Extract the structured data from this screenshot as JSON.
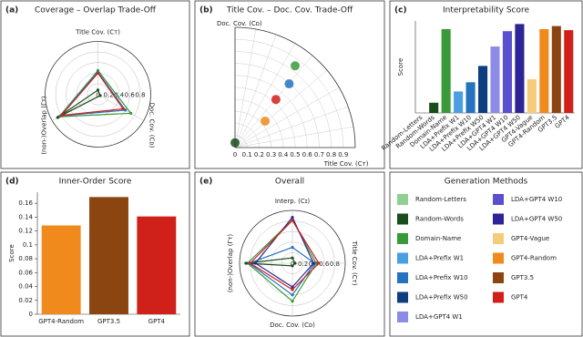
{
  "chart_data": [
    {
      "type": "radar",
      "panel_label": "(a)",
      "title": "Coverage – Overlap Trade-Off",
      "axes": [
        "Title Cov. (Cᴛ)",
        "Doc. Cov. (Cᴅ)",
        "(non-)Overlap (Γᴛ)"
      ],
      "rlim": [
        0,
        1
      ],
      "rticks": [
        0,
        0.2,
        0.4,
        0.6,
        0.8
      ],
      "series": [
        {
          "name": "Domain-Name",
          "color": "#3a9a3a",
          "values": [
            0.45,
            0.72,
            0.85
          ]
        },
        {
          "name": "Random-Words",
          "color": "#1b4d1b",
          "values": [
            0.08,
            0.05,
            0.88
          ]
        },
        {
          "name": "LDA+Prefix W10",
          "color": "#2472c0",
          "values": [
            0.42,
            0.6,
            0.82
          ]
        },
        {
          "name": "GPT4",
          "color": "#d0201a",
          "values": [
            0.4,
            0.55,
            0.8
          ]
        }
      ]
    },
    {
      "type": "polar-scatter",
      "panel_label": "(b)",
      "title": "Title Cov. – Doc. Cov. Trade-Off",
      "x_label": "Title Cov. (Cᴛ)",
      "y_label": "Doc. Cov. (Cᴅ)",
      "xlim": [
        0,
        1
      ],
      "ylim": [
        0,
        1
      ],
      "xticks": [
        0,
        0.1,
        0.2,
        0.3,
        0.4,
        0.5,
        0.6,
        0.7,
        0.8,
        0.9
      ],
      "series": [
        {
          "name": "Random-Words",
          "color": "#1b4d1b",
          "x": [
            0.0
          ],
          "values": [
            0.04
          ]
        },
        {
          "name": "GPT4-Random",
          "color": "#f08a1c",
          "x": [
            0.25
          ],
          "values": [
            0.22
          ]
        },
        {
          "name": "GPT4",
          "color": "#d0201a",
          "x": [
            0.34
          ],
          "values": [
            0.4
          ]
        },
        {
          "name": "LDA+Prefix W10",
          "color": "#2472c0",
          "x": [
            0.45
          ],
          "values": [
            0.53
          ]
        },
        {
          "name": "Domain-Name",
          "color": "#3a9a3a",
          "x": [
            0.5
          ],
          "values": [
            0.68
          ]
        }
      ]
    },
    {
      "type": "bar",
      "panel_label": "(c)",
      "title": "Interpretability Score",
      "y_label": "Score",
      "categories": [
        "Random-Letters",
        "Random-Words",
        "Domain-Name",
        "LDA+Prefix W1",
        "LDA+Prefix W10",
        "LDA+Prefix W50",
        "LDA+GPT4 W1",
        "LDA+GPT4 W10",
        "LDA+GPT4 W50",
        "GPT4-Vague",
        "GPT4-Random",
        "GPT3.5",
        "GPT4"
      ],
      "values": [
        0,
        0.1,
        0.82,
        0.21,
        0.3,
        0.46,
        0.65,
        0.8,
        0.87,
        0.33,
        0.82,
        0.85,
        0.81
      ],
      "colors": [
        "#8fcf8f",
        "#1b4d1b",
        "#3a9a3a",
        "#4a9fe0",
        "#2472c0",
        "#0d3f80",
        "#8c8ce8",
        "#5a4fcf",
        "#2d2596",
        "#f5cc7a",
        "#f08a1c",
        "#8b4510",
        "#d0201a"
      ],
      "ylim": [
        0,
        0.9
      ]
    },
    {
      "type": "bar",
      "panel_label": "(d)",
      "title": "Inner-Order Score",
      "y_label": "Score",
      "categories": [
        "GPT4-Random",
        "GPT3.5",
        "GPT4"
      ],
      "values": [
        0.128,
        0.169,
        0.141
      ],
      "colors": [
        "#f08a1c",
        "#8b4510",
        "#d0201a"
      ],
      "ylim": [
        0,
        0.176
      ],
      "yticks": [
        0,
        0.02,
        0.04,
        0.06,
        0.08,
        0.1,
        0.12,
        0.14,
        0.16
      ]
    },
    {
      "type": "radar",
      "panel_label": "(e)",
      "title": "Overall",
      "axes": [
        "Interp. (Cɪ)",
        "Title Cov. (Cᴛ)",
        "Doc. Cov. (Cᴅ)",
        "(non-)Overlap (Γᴛ)"
      ],
      "rlim": [
        0,
        1
      ],
      "rticks": [
        0,
        0.2,
        0.4,
        0.6,
        0.8
      ],
      "series": [
        {
          "name": "Domain-Name",
          "color": "#3a9a3a",
          "values": [
            0.82,
            0.45,
            0.72,
            0.85
          ]
        },
        {
          "name": "Random-Words",
          "color": "#1b4d1b",
          "values": [
            0.1,
            0.05,
            0.05,
            0.88
          ]
        },
        {
          "name": "LDA+Prefix W10",
          "color": "#2472c0",
          "values": [
            0.3,
            0.42,
            0.6,
            0.82
          ]
        },
        {
          "name": "LDA+GPT4 W50",
          "color": "#2d2596",
          "values": [
            0.87,
            0.4,
            0.45,
            0.7
          ]
        },
        {
          "name": "GPT4",
          "color": "#d0201a",
          "values": [
            0.81,
            0.5,
            0.5,
            0.8
          ]
        }
      ]
    },
    {
      "type": "legend",
      "title": "Generation Methods",
      "series": [
        {
          "name": "Random-Letters",
          "color": "#8fcf8f"
        },
        {
          "name": "Random-Words",
          "color": "#1b4d1b"
        },
        {
          "name": "Domain-Name",
          "color": "#3a9a3a"
        },
        {
          "name": "LDA+Prefix W1",
          "color": "#4a9fe0"
        },
        {
          "name": "LDA+Prefix W10",
          "color": "#2472c0"
        },
        {
          "name": "LDA+Prefix W50",
          "color": "#0d3f80"
        },
        {
          "name": "LDA+GPT4 W1",
          "color": "#8c8ce8"
        },
        {
          "name": "LDA+GPT4 W10",
          "color": "#5a4fcf"
        },
        {
          "name": "LDA+GPT4 W50",
          "color": "#2d2596"
        },
        {
          "name": "GPT4-Vague",
          "color": "#f5cc7a"
        },
        {
          "name": "GPT4-Random",
          "color": "#f08a1c"
        },
        {
          "name": "GPT3.5",
          "color": "#8b4510"
        },
        {
          "name": "GPT4",
          "color": "#d0201a"
        }
      ]
    }
  ]
}
